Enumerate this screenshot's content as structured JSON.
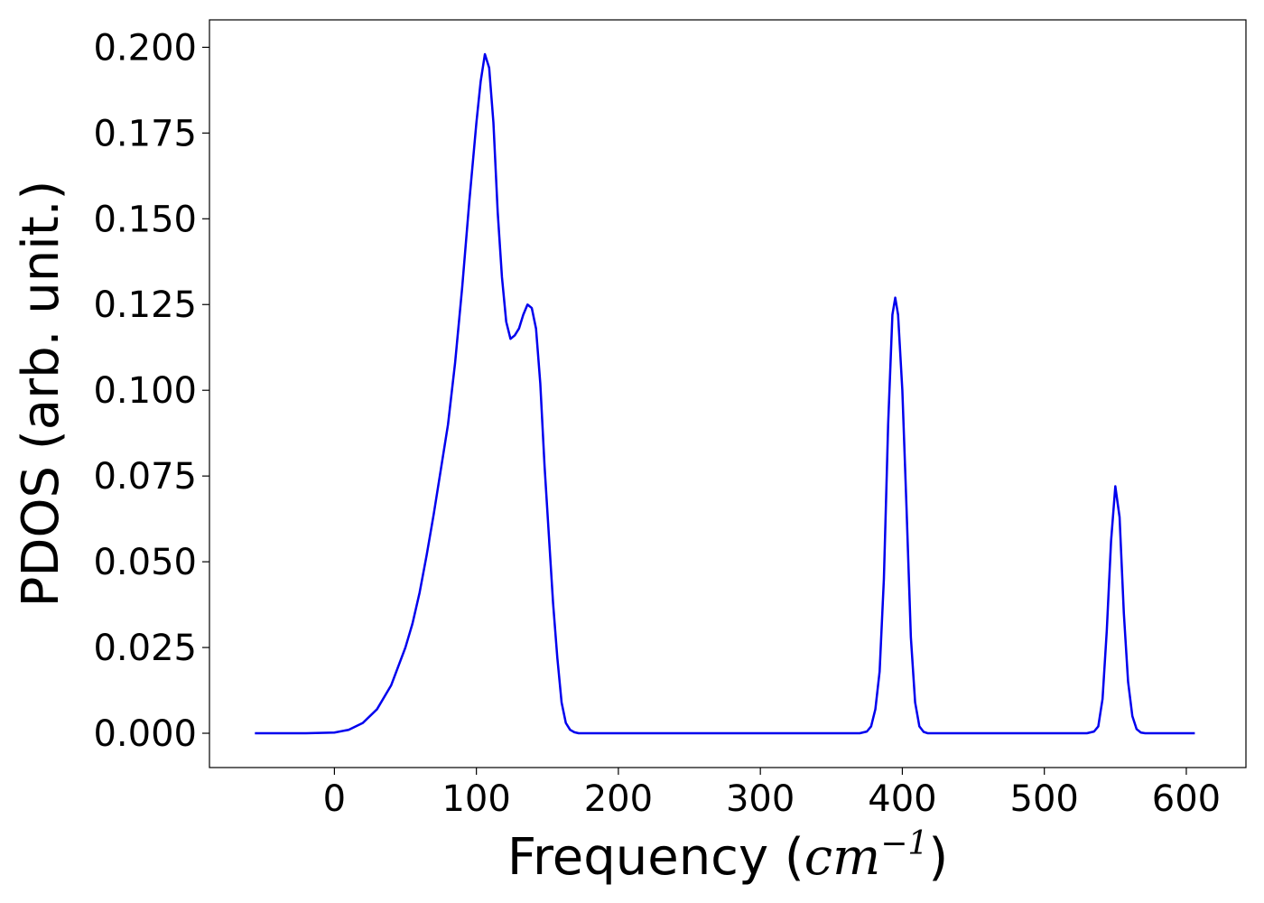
{
  "chart_data": {
    "type": "line",
    "title": "",
    "xlabel_text": "Frequency (",
    "xlabel_math": "cm",
    "xlabel_sup": "−1",
    "xlabel_close": ")",
    "ylabel": "PDOS (arb. unit.)",
    "xlim": [
      -88,
      642
    ],
    "ylim": [
      -0.01,
      0.208
    ],
    "xticks": [
      0,
      100,
      200,
      300,
      400,
      500,
      600
    ],
    "xtick_labels": [
      "0",
      "100",
      "200",
      "300",
      "400",
      "500",
      "600"
    ],
    "yticks": [
      0.0,
      0.025,
      0.05,
      0.075,
      0.1,
      0.125,
      0.15,
      0.175,
      0.2
    ],
    "ytick_labels": [
      "0.000",
      "0.025",
      "0.050",
      "0.075",
      "0.100",
      "0.125",
      "0.150",
      "0.175",
      "0.200"
    ],
    "grid": false,
    "series": [
      {
        "color": "#0000ee",
        "x": [
          -56,
          -40,
          -20,
          0,
          10,
          20,
          30,
          40,
          50,
          55,
          60,
          65,
          70,
          75,
          80,
          85,
          90,
          95,
          100,
          103,
          106,
          109,
          112,
          115,
          118,
          121,
          124,
          127,
          130,
          133,
          136,
          139,
          142,
          145,
          148,
          151,
          154,
          157,
          160,
          163,
          166,
          169,
          172,
          175,
          180,
          200,
          250,
          300,
          350,
          370,
          375,
          378,
          381,
          384,
          387,
          390,
          393,
          395,
          397,
          400,
          403,
          406,
          409,
          412,
          415,
          418,
          421,
          425,
          450,
          500,
          530,
          535,
          538,
          541,
          544,
          547,
          550,
          553,
          556,
          559,
          562,
          565,
          568,
          571,
          575,
          600,
          606
        ],
        "y": [
          0.0,
          0.0,
          0.0,
          0.0002,
          0.001,
          0.003,
          0.007,
          0.014,
          0.025,
          0.032,
          0.041,
          0.052,
          0.064,
          0.077,
          0.09,
          0.108,
          0.13,
          0.155,
          0.178,
          0.19,
          0.198,
          0.194,
          0.178,
          0.152,
          0.133,
          0.12,
          0.115,
          0.116,
          0.118,
          0.122,
          0.125,
          0.124,
          0.118,
          0.102,
          0.078,
          0.058,
          0.038,
          0.022,
          0.009,
          0.003,
          0.001,
          0.0003,
          0.0,
          0.0,
          0.0,
          0.0,
          0.0,
          0.0,
          0.0,
          0.0,
          0.0005,
          0.002,
          0.007,
          0.018,
          0.045,
          0.09,
          0.122,
          0.127,
          0.122,
          0.1,
          0.065,
          0.028,
          0.009,
          0.002,
          0.0004,
          0.0,
          0.0,
          0.0,
          0.0,
          0.0,
          0.0,
          0.0005,
          0.002,
          0.01,
          0.03,
          0.056,
          0.072,
          0.063,
          0.035,
          0.015,
          0.005,
          0.0012,
          0.0002,
          0.0,
          0.0,
          0.0,
          0.0
        ]
      }
    ]
  }
}
